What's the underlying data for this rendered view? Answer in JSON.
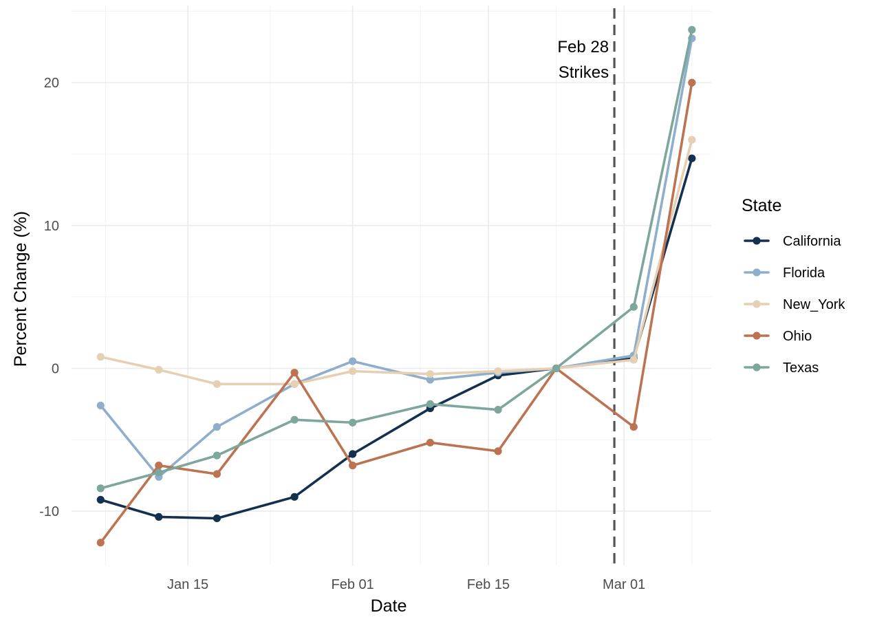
{
  "chart_data": {
    "type": "line",
    "xlabel": "Date",
    "ylabel": "Percent Change (%)",
    "x_axis_type": "date",
    "x": [
      "2026-01-06",
      "2026-01-12",
      "2026-01-18",
      "2026-01-26",
      "2026-02-01",
      "2026-02-09",
      "2026-02-16",
      "2026-02-22",
      "2026-03-02",
      "2026-03-08"
    ],
    "xlim": [
      "2026-01-03",
      "2026-03-10"
    ],
    "ylim": [
      -13.8,
      25.4
    ],
    "x_ticks": [
      "2026-01-15",
      "2026-02-01",
      "2026-02-15",
      "2026-03-01"
    ],
    "x_tick_labels": [
      "Jan 15",
      "Feb 01",
      "Feb 15",
      "Mar 01"
    ],
    "y_ticks": [
      -10,
      0,
      10,
      20
    ],
    "y_tick_labels": [
      "-10",
      "0",
      "10",
      "20"
    ],
    "grid": true,
    "legend": {
      "title": "State",
      "position": "right"
    },
    "series": [
      {
        "name": "California",
        "color": "#14304f",
        "values": [
          -9.2,
          -10.4,
          -10.5,
          -9.0,
          -6.0,
          -2.8,
          -0.5,
          0.0,
          0.7,
          14.7
        ]
      },
      {
        "name": "Florida",
        "color": "#8eaecb",
        "values": [
          -2.6,
          -7.6,
          -4.1,
          -1.1,
          0.5,
          -0.8,
          -0.3,
          0.0,
          0.9,
          23.1
        ]
      },
      {
        "name": "New_York",
        "color": "#e6d0b3",
        "values": [
          0.8,
          -0.1,
          -1.1,
          -1.1,
          -0.2,
          -0.4,
          -0.2,
          0.0,
          0.6,
          16.0
        ]
      },
      {
        "name": "Ohio",
        "color": "#bb7352",
        "values": [
          -12.2,
          -6.8,
          -7.4,
          -0.3,
          -6.8,
          -5.2,
          -5.8,
          0.0,
          -4.1,
          20.0
        ]
      },
      {
        "name": "Texas",
        "color": "#7da69c",
        "values": [
          -8.4,
          -7.3,
          -6.1,
          -3.6,
          -3.8,
          -2.5,
          -2.9,
          0.0,
          4.3,
          23.7
        ]
      }
    ],
    "annotations": [
      {
        "type": "vline",
        "x": "2026-02-28",
        "style": "dashed",
        "color": "#555555",
        "label_lines": [
          "Feb 28",
          "Strikes"
        ]
      }
    ]
  }
}
